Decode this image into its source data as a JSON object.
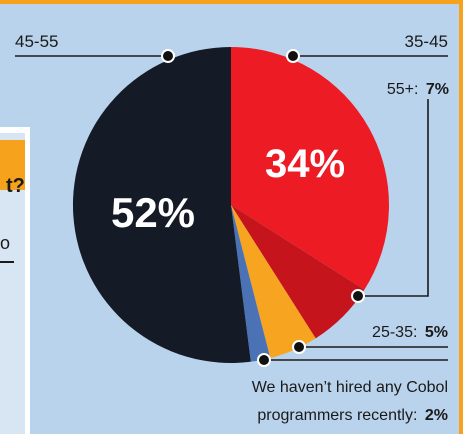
{
  "chart_data": {
    "type": "pie",
    "title": "",
    "slices": [
      {
        "label": "35-45",
        "value": 34,
        "display": "34%",
        "color": "#ed1c24"
      },
      {
        "label": "55+:",
        "value": 7,
        "display": "7%",
        "color": "#c5141b"
      },
      {
        "label": "25-35:",
        "value": 5,
        "display": "5%",
        "color": "#f7a520"
      },
      {
        "label": "We haven't hired any Cobol programmers recently:",
        "value": 2,
        "display": "2%",
        "color": "#4a72b5"
      },
      {
        "label": "45-55",
        "value": 52,
        "display": "52%",
        "color": "#141a26"
      }
    ],
    "legend": "callouts"
  },
  "labels": {
    "age_45_55": "45-55",
    "age_35_45": "35-45",
    "age_55_plus": "55+:",
    "age_55_plus_value": "7%",
    "age_25_35": "25-35:",
    "age_25_35_value": "5%",
    "no_hire_line1": "We haven’t hired any Cobol",
    "no_hire_line2": "programmers recently:",
    "no_hire_value": "2%",
    "pct_52": "52%",
    "pct_34": "34%"
  },
  "background_panel": {
    "cut_off_text_1": "t?",
    "cut_off_text_2": "o"
  },
  "colors": {
    "background": "#b9d3ec",
    "frame_orange": "#f6a21c",
    "panel_orange": "#f6a21c"
  }
}
